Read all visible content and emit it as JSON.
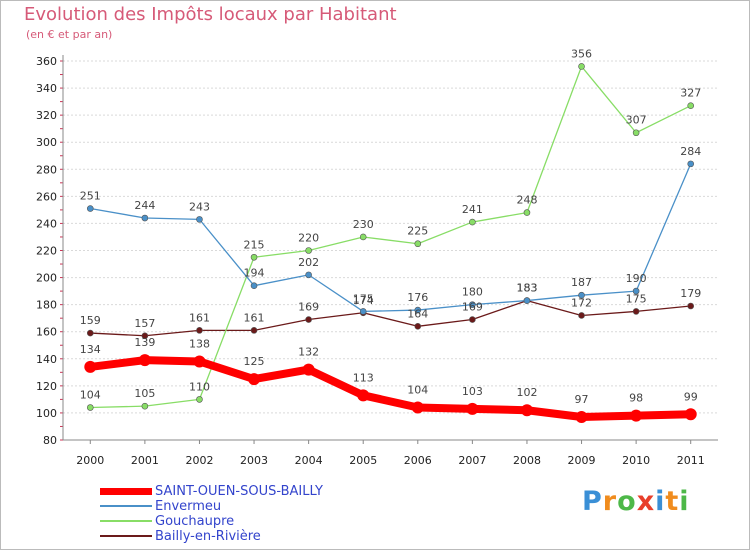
{
  "title": "Evolution des Impôts locaux par Habitant",
  "subtitle": "(en € et par an)",
  "logo": {
    "text": "Proxiti",
    "letters": [
      {
        "ch": "P",
        "color": "#3a8fd6"
      },
      {
        "ch": "r",
        "color": "#f08c1e"
      },
      {
        "ch": "o",
        "color": "#4db848"
      },
      {
        "ch": "x",
        "color": "#e83e2a"
      },
      {
        "ch": "i",
        "color": "#3a8fd6"
      },
      {
        "ch": "t",
        "color": "#f08c1e"
      },
      {
        "ch": "i",
        "color": "#4db848"
      }
    ]
  },
  "chart_data": {
    "type": "line",
    "title": "Evolution des Impôts locaux par Habitant",
    "subtitle": "(en € et par an)",
    "categories": [
      "2000",
      "2001",
      "2002",
      "2003",
      "2004",
      "2005",
      "2006",
      "2007",
      "2008",
      "2009",
      "2010",
      "2011"
    ],
    "ylim": [
      80,
      360
    ],
    "yticks": [
      80,
      100,
      120,
      140,
      160,
      180,
      200,
      220,
      240,
      260,
      280,
      300,
      320,
      340,
      360
    ],
    "grid": "horizontal",
    "legend_position": "bottom-left",
    "series": [
      {
        "name": "SAINT-OUEN-SOUS-BAILLY",
        "color": "#ff0000",
        "values": [
          134,
          139,
          138,
          125,
          132,
          113,
          104,
          103,
          102,
          97,
          98,
          99
        ],
        "labels": [
          "134",
          "139",
          "138",
          "125",
          "132",
          "113",
          "104",
          "103",
          "102",
          "97",
          "98",
          "99"
        ]
      },
      {
        "name": "Envermeu",
        "color": "#4a90c8",
        "values": [
          251,
          244,
          243,
          194,
          202,
          175,
          176,
          180,
          183,
          187,
          190,
          284
        ],
        "labels": [
          "251",
          "244",
          "243",
          "194",
          "202",
          "175",
          "176",
          "180",
          "183",
          "187",
          "190",
          "284"
        ]
      },
      {
        "name": "Gouchaupre",
        "color": "#88dd66",
        "values": [
          104,
          105,
          110,
          215,
          220,
          230,
          225,
          241,
          248,
          356,
          307,
          327
        ],
        "labels": [
          "104",
          "105",
          "110",
          "215",
          "220",
          "230",
          "225",
          "241",
          "248",
          "356",
          "307",
          "327"
        ]
      },
      {
        "name": "Bailly-en-Rivière",
        "color": "#6b1a1a",
        "values": [
          159,
          157,
          161,
          161,
          169,
          174,
          164,
          169,
          183,
          172,
          175,
          179
        ],
        "labels": [
          "159",
          "157",
          "161",
          "161",
          "169",
          "174",
          "164",
          "169",
          "183",
          "172",
          "175",
          "179"
        ]
      }
    ]
  }
}
